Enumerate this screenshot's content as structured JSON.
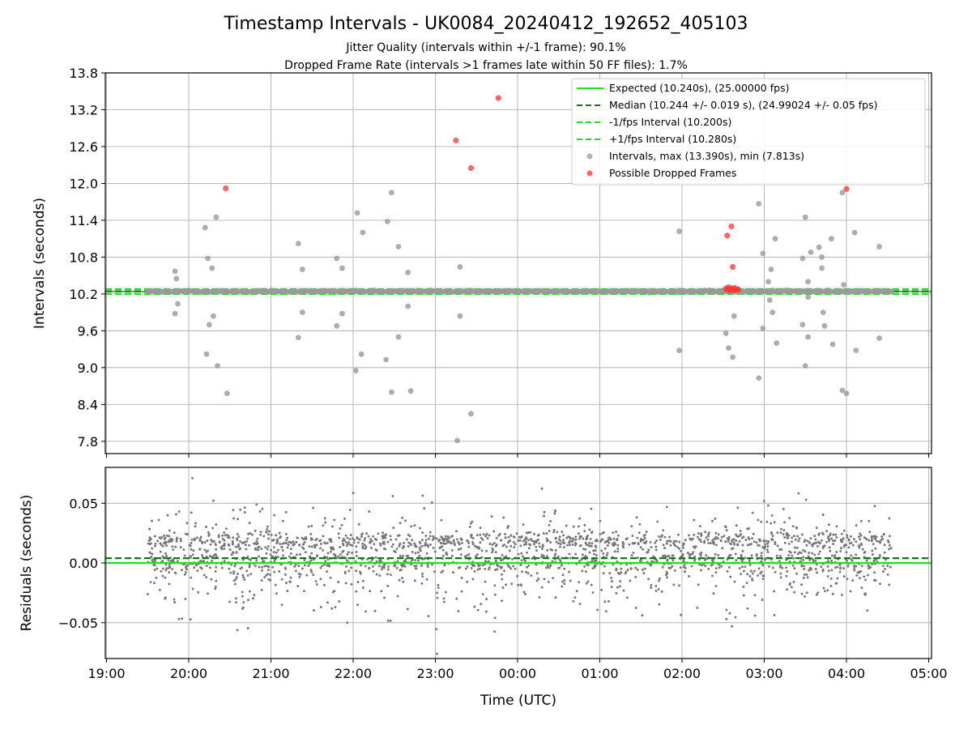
{
  "title": "Timestamp Intervals - UK0084_20240412_192652_405103",
  "subtitle_1": "Jitter Quality (intervals within +/-1 frame): 90.1%",
  "subtitle_2": "Dropped Frame Rate (intervals >1 frames late within 50 FF files): 1.7%",
  "chart_data": [
    {
      "type": "scatter",
      "ylabel": "Intervals (seconds)",
      "ylim": [
        7.6,
        13.8
      ],
      "y_ticks": [
        "7.8",
        "8.4",
        "9.0",
        "9.6",
        "10.2",
        "10.8",
        "11.4",
        "12.0",
        "12.6",
        "13.2",
        "13.8"
      ],
      "grid": true,
      "legend_placement": "top-right",
      "reference_lines": [
        {
          "name": "Expected (10.240s), (25.00000 fps)",
          "value": 10.24,
          "color": "#22dd22",
          "style": "solid"
        },
        {
          "name": "Median (10.244 +/- 0.019 s), (24.99024 +/- 0.05 fps)",
          "value": 10.244,
          "color": "#117711",
          "style": "dashed"
        },
        {
          "name": "-1/fps Interval (10.200s)",
          "value": 10.2,
          "color": "#22dd22",
          "style": "dashed"
        },
        {
          "name": "+1/fps Interval (10.280s)",
          "value": 10.28,
          "color": "#22dd22",
          "style": "dashed"
        }
      ],
      "series": [
        {
          "name": "Intervals, max (13.390s), min (7.813s)",
          "color": "#999999",
          "band": {
            "x_start": "19:30",
            "x_end": "04:33",
            "center": 10.244,
            "jitter": 0.02
          },
          "outliers": [
            [
              "19:50",
              10.57
            ],
            [
              "19:51",
              10.45
            ],
            [
              "19:52",
              10.04
            ],
            [
              "19:50",
              9.88
            ],
            [
              "20:12",
              11.28
            ],
            [
              "20:14",
              10.78
            ],
            [
              "20:17",
              10.62
            ],
            [
              "20:20",
              11.45
            ],
            [
              "20:13",
              9.22
            ],
            [
              "20:15",
              9.7
            ],
            [
              "20:18",
              9.84
            ],
            [
              "20:21",
              9.03
            ],
            [
              "20:28",
              8.58
            ],
            [
              "21:20",
              11.02
            ],
            [
              "21:23",
              10.6
            ],
            [
              "21:20",
              9.49
            ],
            [
              "21:23",
              9.9
            ],
            [
              "21:48",
              10.78
            ],
            [
              "21:52",
              10.62
            ],
            [
              "21:48",
              9.68
            ],
            [
              "21:52",
              9.88
            ],
            [
              "22:03",
              11.52
            ],
            [
              "22:07",
              11.2
            ],
            [
              "22:02",
              8.95
            ],
            [
              "22:06",
              9.22
            ],
            [
              "22:25",
              11.38
            ],
            [
              "22:28",
              11.85
            ],
            [
              "22:33",
              10.97
            ],
            [
              "22:40",
              10.55
            ],
            [
              "22:24",
              9.13
            ],
            [
              "22:28",
              8.6
            ],
            [
              "22:33",
              9.5
            ],
            [
              "22:40",
              10.0
            ],
            [
              "22:42",
              8.62
            ],
            [
              "23:16",
              7.813
            ],
            [
              "23:18",
              10.64
            ],
            [
              "23:18",
              9.84
            ],
            [
              "23:26",
              8.25
            ],
            [
              "01:58",
              11.22
            ],
            [
              "01:58",
              9.28
            ],
            [
              "02:32",
              9.56
            ],
            [
              "02:34",
              9.32
            ],
            [
              "02:37",
              9.17
            ],
            [
              "02:38",
              9.84
            ],
            [
              "02:56",
              11.67
            ],
            [
              "02:59",
              10.86
            ],
            [
              "03:03",
              10.4
            ],
            [
              "03:05",
              10.6
            ],
            [
              "03:08",
              11.1
            ],
            [
              "02:56",
              8.83
            ],
            [
              "02:59",
              9.64
            ],
            [
              "03:04",
              10.1
            ],
            [
              "03:06",
              9.9
            ],
            [
              "03:09",
              9.4
            ],
            [
              "03:28",
              10.78
            ],
            [
              "03:30",
              11.45
            ],
            [
              "03:32",
              10.4
            ],
            [
              "03:34",
              10.88
            ],
            [
              "03:28",
              9.7
            ],
            [
              "03:30",
              9.03
            ],
            [
              "03:32",
              9.5
            ],
            [
              "03:32",
              10.15
            ],
            [
              "03:40",
              10.96
            ],
            [
              "03:42",
              10.8
            ],
            [
              "03:42",
              10.62
            ],
            [
              "03:43",
              9.9
            ],
            [
              "03:44",
              9.68
            ],
            [
              "03:49",
              11.1
            ],
            [
              "03:50",
              9.38
            ],
            [
              "03:57",
              11.85
            ],
            [
              "03:58",
              10.35
            ],
            [
              "03:57",
              8.63
            ],
            [
              "04:00",
              8.58
            ],
            [
              "04:06",
              11.2
            ],
            [
              "04:07",
              9.28
            ],
            [
              "04:24",
              10.97
            ],
            [
              "04:24",
              9.48
            ]
          ]
        },
        {
          "name": "Possible Dropped Frames",
          "color": "#ff3333",
          "points": [
            [
              "20:27",
              11.92
            ],
            [
              "23:15",
              12.7
            ],
            [
              "23:26",
              12.25
            ],
            [
              "23:46",
              13.39
            ],
            [
              "04:00",
              11.91
            ],
            [
              "02:33",
              11.15
            ],
            [
              "02:36",
              11.3
            ],
            [
              "02:37",
              10.64
            ],
            [
              "02:32",
              10.29
            ],
            [
              "02:33",
              10.27
            ],
            [
              "02:34",
              10.31
            ],
            [
              "02:35",
              10.26
            ],
            [
              "02:36",
              10.29
            ],
            [
              "02:37",
              10.27
            ],
            [
              "02:38",
              10.3
            ],
            [
              "02:39",
              10.26
            ],
            [
              "02:40",
              10.28
            ],
            [
              "02:41",
              10.27
            ]
          ]
        }
      ]
    },
    {
      "type": "scatter",
      "xlabel": "Time (UTC)",
      "ylabel": "Residuals (seconds)",
      "ylim": [
        -0.08,
        0.08
      ],
      "y_ticks": [
        "−0.05",
        "0.00",
        "0.05"
      ],
      "x_ticks": [
        "19:00",
        "20:00",
        "21:00",
        "22:00",
        "23:00",
        "00:00",
        "01:00",
        "02:00",
        "03:00",
        "04:00",
        "05:00"
      ],
      "grid": true,
      "reference_lines": [
        {
          "value": 0.0,
          "color": "#22dd22",
          "style": "solid"
        },
        {
          "value": 0.004,
          "color": "#117711",
          "style": "dashed"
        }
      ],
      "series": [
        {
          "color": "#777777",
          "x_start": "19:30",
          "x_end": "04:33",
          "mean": 0.004,
          "spread": 0.02,
          "range": [
            -0.076,
            0.071
          ]
        }
      ]
    }
  ]
}
